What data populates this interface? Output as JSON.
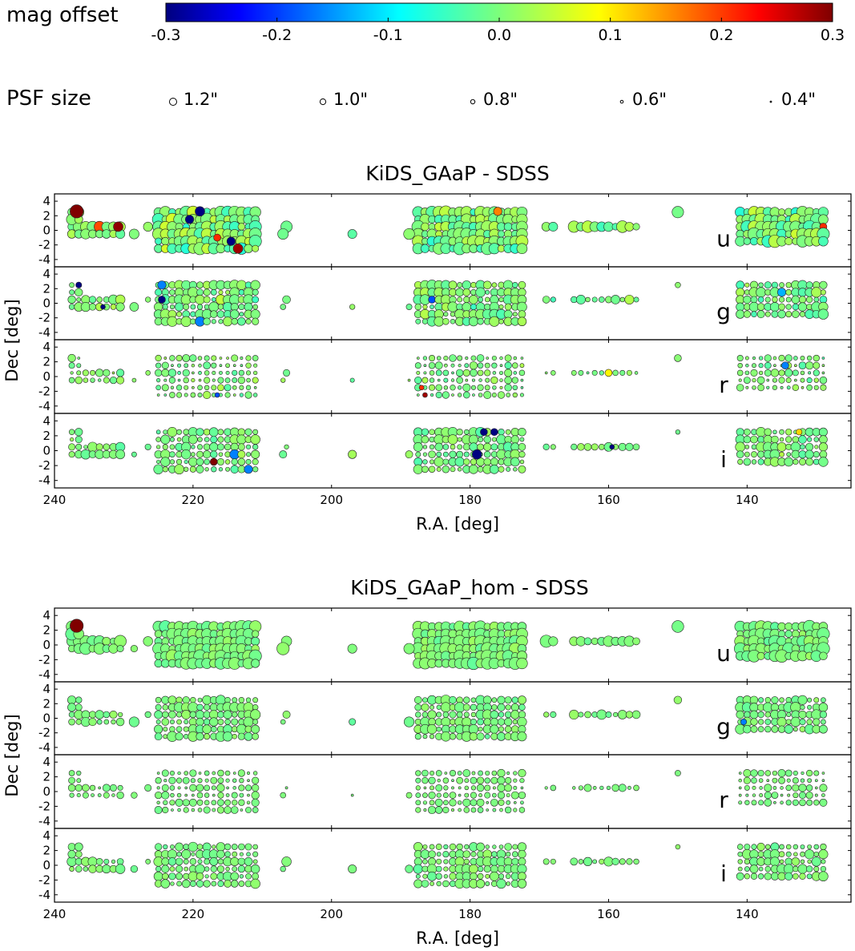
{
  "colorbar": {
    "label": "mag offset",
    "min": -0.3,
    "max": 0.3,
    "ticks": [
      "-0.3",
      "-0.2",
      "-0.1",
      "0.0",
      "0.1",
      "0.2",
      "0.3"
    ],
    "colormap": "jet"
  },
  "psf_legend": {
    "label": "PSF size",
    "entries": [
      {
        "text": "1.2\"",
        "psf": 1.2
      },
      {
        "text": "1.0\"",
        "psf": 1.0
      },
      {
        "text": "0.8\"",
        "psf": 0.8
      },
      {
        "text": "0.6\"",
        "psf": 0.6
      },
      {
        "text": "0.4\"",
        "psf": 0.4
      }
    ]
  },
  "chart_data": [
    {
      "type": "scatter",
      "title": "KiDS_GAaP - SDSS",
      "xlabel": "R.A. [deg]",
      "ylabel": "Dec [deg]",
      "xlim": [
        240,
        125
      ],
      "ylim": [
        -5,
        5
      ],
      "xticks": [
        "240",
        "220",
        "200",
        "180",
        "160",
        "140"
      ],
      "yticks": [
        "4",
        "2",
        "0",
        "-2",
        "-4"
      ],
      "bands": [
        {
          "band": "u",
          "psf_level": 1.0,
          "scatter": 0.05,
          "points": [
            {
              "ra": 236.8,
              "dec": 2.6,
              "offset": 0.3,
              "psf": 1.3
            },
            {
              "ra": 233.5,
              "dec": 0.5,
              "offset": 0.18,
              "psf": 1.1
            },
            {
              "ra": 230.8,
              "dec": 0.5,
              "offset": 0.29,
              "psf": 1.0
            },
            {
              "ra": 219.0,
              "dec": 2.6,
              "offset": -0.3,
              "psf": 1.0
            },
            {
              "ra": 220.5,
              "dec": 1.5,
              "offset": -0.3,
              "psf": 0.9
            },
            {
              "ra": 214.5,
              "dec": -1.5,
              "offset": -0.3,
              "psf": 0.9
            },
            {
              "ra": 213.5,
              "dec": -2.5,
              "offset": 0.28,
              "psf": 1.0
            },
            {
              "ra": 216.5,
              "dec": -1.0,
              "offset": 0.2,
              "psf": 0.8
            },
            {
              "ra": 176.0,
              "dec": 2.6,
              "offset": 0.15,
              "psf": 0.9
            },
            {
              "ra": 129.0,
              "dec": 0.5,
              "offset": 0.2,
              "psf": 0.8
            }
          ]
        },
        {
          "band": "g",
          "psf_level": 0.8,
          "scatter": 0.04,
          "points": [
            {
              "ra": 236.5,
              "dec": 2.5,
              "offset": -0.3,
              "psf": 0.7
            },
            {
              "ra": 233.0,
              "dec": -0.5,
              "offset": -0.3,
              "psf": 0.6
            },
            {
              "ra": 224.5,
              "dec": 0.5,
              "offset": -0.3,
              "psf": 0.8
            },
            {
              "ra": 224.5,
              "dec": 2.5,
              "offset": -0.15,
              "psf": 0.9
            },
            {
              "ra": 219.0,
              "dec": -2.5,
              "offset": -0.15,
              "psf": 1.0
            },
            {
              "ra": 185.5,
              "dec": 0.5,
              "offset": -0.18,
              "psf": 0.8
            },
            {
              "ra": 135.0,
              "dec": 1.5,
              "offset": -0.12,
              "psf": 0.9
            }
          ]
        },
        {
          "band": "r",
          "psf_level": 0.6,
          "scatter": 0.03,
          "points": [
            {
              "ra": 186.5,
              "dec": -2.5,
              "offset": 0.28,
              "psf": 0.6
            },
            {
              "ra": 187.0,
              "dec": -1.5,
              "offset": 0.2,
              "psf": 0.6
            },
            {
              "ra": 216.5,
              "dec": -2.5,
              "offset": -0.18,
              "psf": 0.6
            },
            {
              "ra": 134.5,
              "dec": 1.5,
              "offset": -0.15,
              "psf": 0.8
            },
            {
              "ra": 160.0,
              "dec": 0.5,
              "offset": 0.08,
              "psf": 0.8
            }
          ]
        },
        {
          "band": "i",
          "psf_level": 0.75,
          "scatter": 0.03,
          "points": [
            {
              "ra": 178.0,
              "dec": 2.5,
              "offset": -0.3,
              "psf": 0.8
            },
            {
              "ra": 176.5,
              "dec": 2.5,
              "offset": -0.3,
              "psf": 0.8
            },
            {
              "ra": 179.0,
              "dec": -0.5,
              "offset": -0.3,
              "psf": 1.0
            },
            {
              "ra": 159.5,
              "dec": 0.5,
              "offset": -0.3,
              "psf": 0.6
            },
            {
              "ra": 217.0,
              "dec": -1.5,
              "offset": 0.3,
              "psf": 0.8
            },
            {
              "ra": 214.0,
              "dec": -0.5,
              "offset": -0.15,
              "psf": 1.0
            },
            {
              "ra": 212.0,
              "dec": -2.5,
              "offset": -0.15,
              "psf": 0.9
            },
            {
              "ra": 132.5,
              "dec": 2.5,
              "offset": 0.1,
              "psf": 0.7
            }
          ]
        }
      ]
    },
    {
      "type": "scatter",
      "title": "KiDS_GAaP_hom - SDSS",
      "xlabel": "R.A. [deg]",
      "ylabel": "Dec [deg]",
      "xlim": [
        240,
        125
      ],
      "ylim": [
        -5,
        5
      ],
      "xticks": [
        "240",
        "220",
        "200",
        "180",
        "160",
        "140"
      ],
      "yticks": [
        "4",
        "2",
        "0",
        "-2",
        "-4"
      ],
      "bands": [
        {
          "band": "u",
          "psf_level": 1.0,
          "scatter": 0.02,
          "points": [
            {
              "ra": 236.8,
              "dec": 2.6,
              "offset": 0.3,
              "psf": 1.3
            }
          ]
        },
        {
          "band": "g",
          "psf_level": 0.8,
          "scatter": 0.02,
          "points": [
            {
              "ra": 140.5,
              "dec": -0.5,
              "offset": -0.15,
              "psf": 0.7
            }
          ]
        },
        {
          "band": "r",
          "psf_level": 0.6,
          "scatter": 0.01,
          "points": []
        },
        {
          "band": "i",
          "psf_level": 0.75,
          "scatter": 0.02,
          "points": []
        }
      ]
    }
  ]
}
